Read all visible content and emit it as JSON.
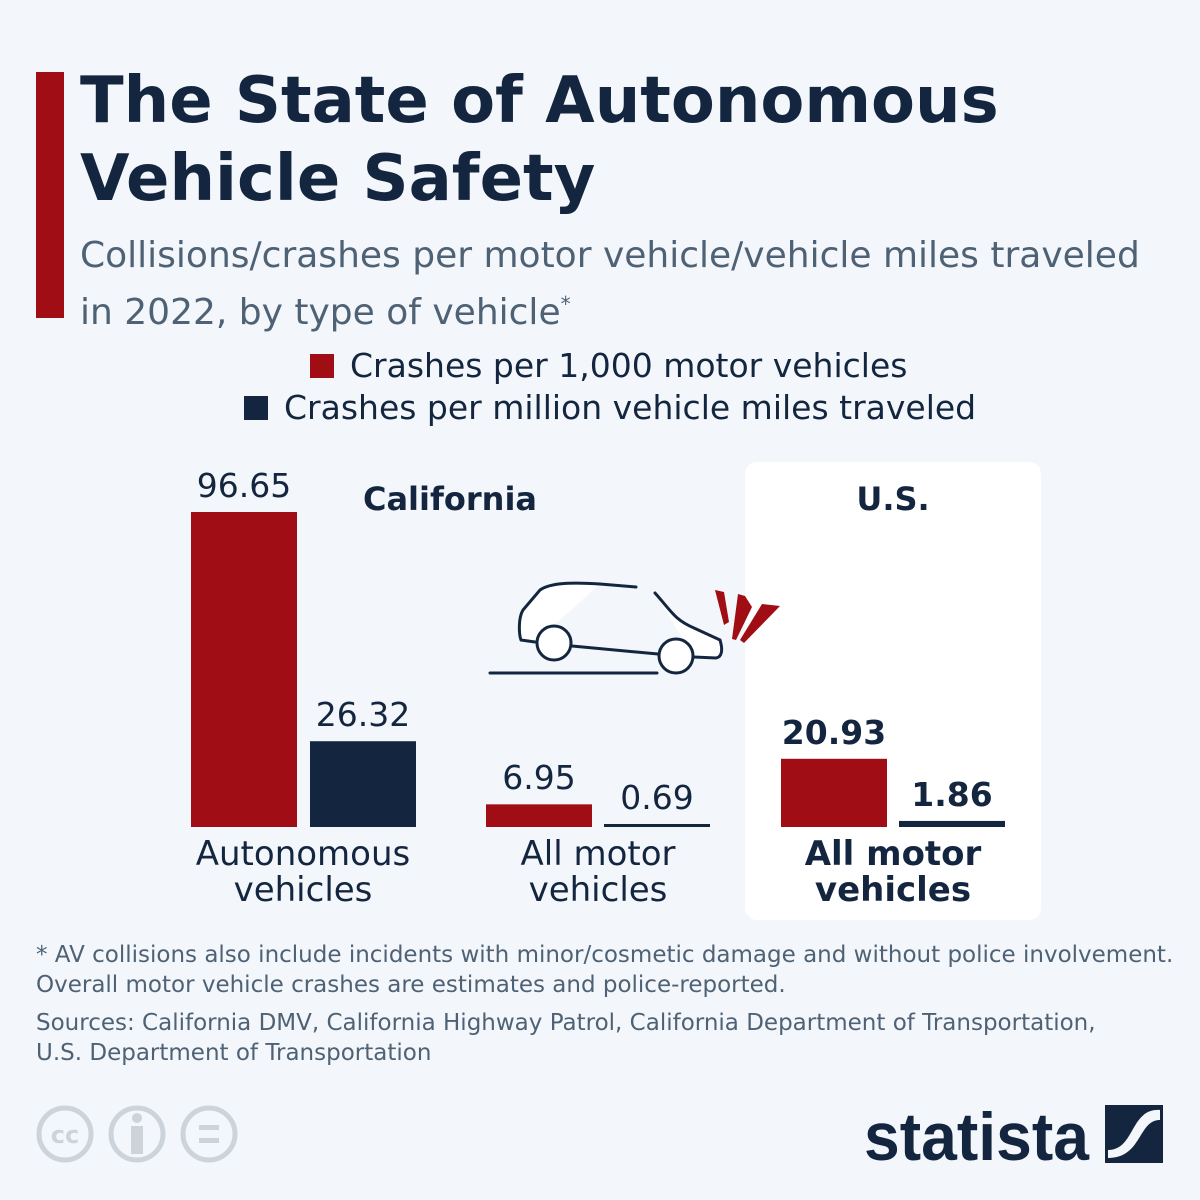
{
  "title": "The State of Autonomous Vehicle Safety",
  "subtitle": "Collisions/crashes per motor vehicle/vehicle miles traveled in 2022, by type of vehicle",
  "subtitle_mark": "*",
  "colors": {
    "red": "#a00d14",
    "navy": "#14263f",
    "background": "#f3f7fb",
    "panel": "#ffffff"
  },
  "chart_data": {
    "type": "bar",
    "legend_placement": "top-center",
    "series": [
      {
        "name": "Crashes per 1,000 motor vehicles",
        "color": "#a00d14",
        "values": [
          96.65,
          6.95,
          20.93
        ]
      },
      {
        "name": "Crashes per million vehicle miles traveled",
        "color": "#14263f",
        "values": [
          26.32,
          0.69,
          1.86
        ]
      }
    ],
    "groups": [
      {
        "label": "California",
        "categories": [
          "Autonomous vehicles",
          "All motor vehicles"
        ]
      },
      {
        "label": "U.S.",
        "categories": [
          "All motor vehicles"
        ]
      }
    ],
    "categories": [
      "Autonomous vehicles",
      "All motor vehicles",
      "All motor vehicles"
    ],
    "labels": [
      [
        "96.65",
        "26.32"
      ],
      [
        "6.95",
        "0.69"
      ],
      [
        "20.93",
        "1.86"
      ]
    ],
    "ylim": [
      0,
      96.65
    ],
    "grid": false
  },
  "footnote": "* AV collisions also include incidents with minor/cosmetic damage and without police involvement. Overall motor vehicle crashes are estimates and police-reported.",
  "sources": "Sources: California DMV, California Highway Patrol, California Department of Transportation, U.S. Department of Transportation",
  "brand": "statista",
  "license_icons": [
    "cc-icon",
    "attribution-icon",
    "no-derivatives-icon"
  ]
}
